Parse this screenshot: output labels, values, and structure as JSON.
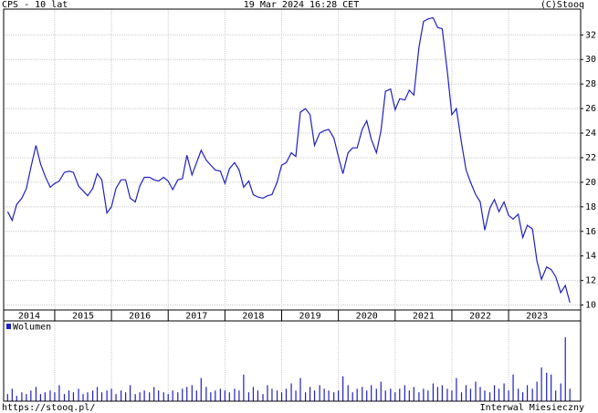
{
  "header": {
    "left": "CPS - 10 lat",
    "center": "19 Mar 2024 16:28 CET",
    "right": "(C)Stooq"
  },
  "footer": {
    "left": "https://stooq.pl/",
    "right": "Interwal Miesieczny"
  },
  "chart_data": [
    {
      "type": "line",
      "color": "#2020c0",
      "grid": true,
      "x": [
        2014.17,
        2014.25,
        2014.33,
        2014.42,
        2014.5,
        2014.58,
        2014.67,
        2014.75,
        2014.83,
        2014.92,
        2015.0,
        2015.08,
        2015.17,
        2015.25,
        2015.33,
        2015.42,
        2015.5,
        2015.58,
        2015.67,
        2015.75,
        2015.83,
        2015.92,
        2016.0,
        2016.08,
        2016.17,
        2016.25,
        2016.33,
        2016.42,
        2016.5,
        2016.58,
        2016.67,
        2016.75,
        2016.83,
        2016.92,
        2017.0,
        2017.08,
        2017.17,
        2017.25,
        2017.33,
        2017.42,
        2017.5,
        2017.58,
        2017.67,
        2017.75,
        2017.83,
        2017.92,
        2018.0,
        2018.08,
        2018.17,
        2018.25,
        2018.33,
        2018.42,
        2018.5,
        2018.58,
        2018.67,
        2018.75,
        2018.83,
        2018.92,
        2019.0,
        2019.08,
        2019.17,
        2019.25,
        2019.33,
        2019.42,
        2019.5,
        2019.58,
        2019.67,
        2019.75,
        2019.83,
        2019.92,
        2020.0,
        2020.08,
        2020.17,
        2020.25,
        2020.33,
        2020.42,
        2020.5,
        2020.58,
        2020.67,
        2020.75,
        2020.83,
        2020.92,
        2021.0,
        2021.08,
        2021.17,
        2021.25,
        2021.33,
        2021.42,
        2021.5,
        2021.58,
        2021.67,
        2021.75,
        2021.83,
        2021.92,
        2022.0,
        2022.08,
        2022.17,
        2022.25,
        2022.33,
        2022.42,
        2022.5,
        2022.58,
        2022.67,
        2022.75,
        2022.83,
        2022.92,
        2023.0,
        2023.08,
        2023.17,
        2023.25,
        2023.33,
        2023.42,
        2023.5,
        2023.58,
        2023.67,
        2023.75,
        2023.83,
        2023.92,
        2024.0,
        2024.08
      ],
      "values": [
        17.6,
        16.9,
        18.2,
        18.7,
        19.5,
        21.2,
        23.0,
        21.5,
        20.5,
        19.6,
        19.9,
        20.1,
        20.8,
        20.9,
        20.8,
        19.7,
        19.3,
        18.9,
        19.5,
        20.7,
        20.2,
        17.5,
        18.0,
        19.5,
        20.2,
        20.2,
        18.7,
        18.4,
        19.7,
        20.4,
        20.4,
        20.2,
        20.1,
        20.4,
        20.1,
        19.4,
        20.2,
        20.3,
        22.2,
        20.6,
        21.6,
        22.6,
        21.8,
        21.4,
        21.0,
        20.9,
        19.9,
        21.1,
        21.6,
        21.0,
        19.6,
        20.1,
        19.0,
        18.8,
        18.7,
        18.9,
        19.0,
        20.0,
        21.4,
        21.6,
        22.4,
        22.1,
        25.7,
        26.0,
        25.5,
        23.0,
        24.0,
        24.2,
        24.3,
        23.6,
        22.1,
        20.7,
        22.4,
        22.8,
        22.8,
        24.3,
        25.0,
        23.5,
        22.4,
        24.2,
        27.4,
        27.6,
        25.9,
        26.8,
        26.7,
        27.5,
        27.1,
        31.0,
        33.1,
        33.3,
        33.4,
        32.6,
        32.5,
        29.0,
        25.5,
        26.0,
        23.2,
        21.0,
        20.0,
        19.0,
        18.4,
        16.1,
        17.9,
        18.6,
        17.6,
        18.4,
        17.3,
        17.0,
        17.4,
        15.5,
        16.5,
        16.2,
        13.6,
        12.1,
        13.1,
        12.9,
        12.3,
        11.0,
        11.6,
        10.2
      ],
      "xlim": [
        2014.1,
        2024.27
      ],
      "xticks": [
        2014,
        2015,
        2016,
        2017,
        2018,
        2019,
        2020,
        2021,
        2022,
        2023
      ],
      "ylim": [
        9.6,
        34.1
      ],
      "yticks": [
        10,
        12,
        14,
        16,
        18,
        20,
        22,
        24,
        26,
        28,
        30,
        32
      ]
    },
    {
      "type": "bar",
      "color": "#2020c0",
      "legend": "top-left",
      "series": [
        {
          "name": "Wolumen",
          "color": "#2020c0",
          "values": [
            8,
            14,
            6,
            10,
            8,
            12,
            16,
            8,
            10,
            12,
            10,
            18,
            8,
            12,
            10,
            14,
            8,
            10,
            12,
            16,
            10,
            12,
            14,
            8,
            12,
            10,
            18,
            8,
            10,
            12,
            10,
            16,
            12,
            10,
            8,
            12,
            10,
            14,
            16,
            18,
            12,
            26,
            16,
            10,
            12,
            14,
            12,
            10,
            14,
            12,
            30,
            10,
            16,
            12,
            8,
            18,
            14,
            12,
            10,
            14,
            20,
            12,
            26,
            10,
            16,
            12,
            18,
            14,
            12,
            10,
            12,
            28,
            18,
            10,
            14,
            16,
            12,
            18,
            14,
            22,
            12,
            14,
            10,
            14,
            18,
            12,
            16,
            10,
            14,
            12,
            20,
            16,
            18,
            14,
            12,
            26,
            10,
            18,
            14,
            22,
            16,
            12,
            10,
            18,
            14,
            20,
            12,
            30,
            14,
            10,
            18,
            14,
            22,
            38,
            32,
            30,
            12,
            20,
            72,
            14
          ]
        }
      ],
      "ylim": [
        0,
        75
      ]
    }
  ]
}
